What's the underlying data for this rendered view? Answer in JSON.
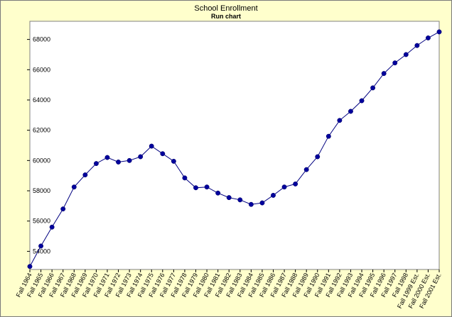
{
  "chart_data": {
    "type": "line",
    "title": "School Enrollment",
    "subtitle": "Run chart",
    "xlabel": "",
    "ylabel": "",
    "ylim": [
      52800,
      69200
    ],
    "yticks": [
      54000,
      56000,
      58000,
      60000,
      62000,
      64000,
      66000,
      68000
    ],
    "grid": false,
    "legend": "none",
    "colors": {
      "background": "#ffffcc",
      "plot_area": "#ffffff",
      "line": "#000080",
      "marker": "#00009c",
      "frame": "#7a7a7a"
    },
    "categories": [
      "Fall 1964",
      "Fall 1965",
      "Fall 1966",
      "Fall 1967",
      "Fall 1968",
      "Fall 1969",
      "Fall 1970",
      "Fall 1971",
      "Fall 1972",
      "Fall 1973",
      "Fall 1974",
      "Fall 1975",
      "Fall 1976",
      "Fall 1977",
      "Fall 1978",
      "Fall 1979",
      "Fall 1980",
      "Fall 1981",
      "Fall 1982",
      "Fall 1983",
      "Fall 1984",
      "Fall 1985",
      "Fall 1986",
      "Fall 1987",
      "Fall 1988",
      "Fall 1989",
      "Fall 1990",
      "Fall 1991",
      "Fall 1992",
      "Fall 1993",
      "Fall 1994",
      "Fall 1995",
      "Fall 1996",
      "Fall 1997",
      "Fall 1998",
      "Fall 1999 Est.",
      "Fall 2000 Est.",
      "Fall 2001 Est."
    ],
    "values": [
      53000,
      54350,
      55600,
      56800,
      58250,
      59050,
      59800,
      60200,
      59900,
      60000,
      60250,
      60950,
      60450,
      59950,
      58850,
      58200,
      58250,
      57850,
      57550,
      57400,
      57100,
      57200,
      57700,
      58250,
      58450,
      59400,
      60250,
      61600,
      62650,
      63250,
      63950,
      64800,
      65750,
      66450,
      67000,
      67600,
      68100,
      68500
    ]
  }
}
